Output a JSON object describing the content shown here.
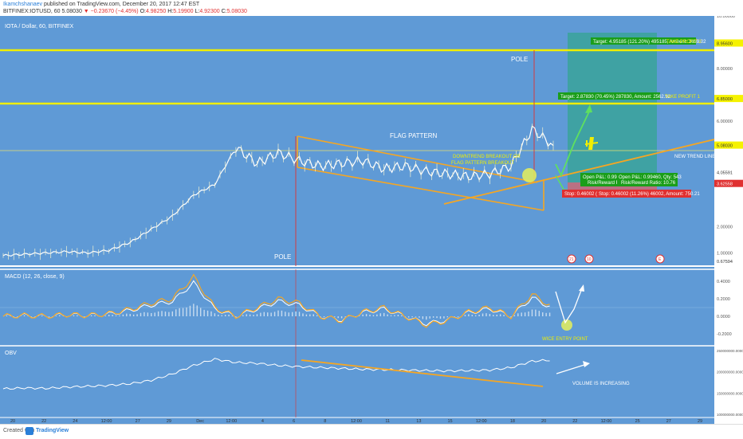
{
  "header": {
    "author": "Ikamchshanaev",
    "published": "published on TradingView.com, December 20, 2017 12:47 EST",
    "symbol_line": "BITFINEX:IOTUSD, 60",
    "last_price": "5.08030",
    "change": "▼ −0.23670 (−4.45%)",
    "ohlc_open_label": "O:",
    "ohlc_open": "4.98250",
    "ohlc_high_label": "H:",
    "ohlc_high": "5.19900",
    "ohlc_low_label": "L:",
    "ohlc_low": "4.92300",
    "ohlc_close_label": "C:",
    "ohlc_close": "5.08030"
  },
  "panes": {
    "main_title": "IOTA / Dollar, 60, BITFINEX",
    "macd_title": "MACD (12, 26, close, 9)",
    "obv_title": "OBV"
  },
  "annotations": {
    "pole_top": "POLE",
    "pole_bottom": "POLE",
    "flag_pattern": "FLAG PATTERN",
    "breakout_line1": "DOWNTREND BREAKOUT  OR",
    "breakout_line2": "FLAG PATTERN BREAKOUT",
    "take_profit_1": "TAKE PROFIT 1",
    "take_profit_2": "TAKE PROFIT 2",
    "new_trend_line": "NEW TREND LINE",
    "wice_entry_point": "WICE ENTRY POINT",
    "volume_increasing": "VOLUME IS INCREASING"
  },
  "position_labels": {
    "target_2": "Target: 4.95185 (121.20%) 495185, Amount: 2659.02",
    "target_1": "Target: 2.87830 (70.45%) 287830, Amount: 2562.92",
    "open_pnl_a": "Open P&L: 0.994",
    "risk_reward_a": "Risk/Reward R",
    "open_pnl_b": "Open P&L: 0.99460, Qty: 543",
    "risk_reward_b": "Risk/Reward Ratio: 10.76",
    "stop_a": "Stop: 0.46002 (1",
    "stop_b": "Stop: 0.46002 (11.26%) 46002, Amount: 750.21"
  },
  "price_axis": {
    "ticks": [
      "10.00000",
      "8.00000",
      "6.00000",
      "4.00000",
      "2.00000",
      "1.00000"
    ],
    "badges": [
      {
        "text": "8.95600",
        "bg": "#f5f200"
      },
      {
        "text": "6.85000",
        "bg": "#f5f200"
      },
      {
        "text": "5.08030",
        "bg": "#f5f200"
      },
      {
        "text": "4.05591",
        "bg": "#ffffff"
      },
      {
        "text": "3.62558",
        "bg": "#e03030"
      },
      {
        "text": "0.67594",
        "bg": "#ffffff"
      }
    ]
  },
  "macd_axis": {
    "ticks": [
      "0.4000",
      "0.2000",
      "0.0000",
      "-0.2000"
    ]
  },
  "obv_axis": {
    "ticks": [
      "250000000.0000",
      "200000000.0000",
      "150000000.0000",
      "100000000.0000"
    ]
  },
  "time_axis": {
    "labels": [
      "20",
      "22",
      "24",
      "12:00",
      "27",
      "29",
      "Dec",
      "12:00",
      "4",
      "6",
      "8",
      "12:00",
      "11",
      "13",
      "15",
      "12:00",
      "18",
      "20",
      "22",
      "12:00",
      "25",
      "27",
      "29"
    ]
  },
  "event_icons": [
    "21",
    "10",
    "E"
  ],
  "footer": {
    "created_with": "Created with",
    "brand": "TradingView"
  },
  "colors": {
    "chart_bg": "#5f9ad6",
    "price_line": "#ffffff",
    "yellow": "#f0ee00",
    "orange": "#f5a623",
    "macd": "#f5a623",
    "target_green": "#1a9e1a",
    "stop_red": "#e03030",
    "arrow_green": "#5fe05f",
    "teal_zone": "#3aa39a",
    "pole_red": "#e03030"
  },
  "chart_data": [
    {
      "type": "line",
      "pane": "price",
      "title": "IOTA / Dollar, 60, BITFINEX",
      "ylim": [
        0.5,
        10.0
      ],
      "x": [
        "Nov 19",
        "Nov 21",
        "Nov 23",
        "Nov 25",
        "Nov 27",
        "Nov 29",
        "Dec 1",
        "Dec 3",
        "Dec 4",
        "Dec 5",
        "Dec 6",
        "Dec 6b",
        "Dec 7",
        "Dec 8",
        "Dec 9",
        "Dec 10",
        "Dec 11",
        "Dec 12",
        "Dec 13",
        "Dec 14",
        "Dec 15",
        "Dec 16",
        "Dec 17",
        "Dec 18",
        "Dec 19",
        "Dec 19b",
        "Dec 20"
      ],
      "series": [
        {
          "values": [
            0.9,
            0.95,
            1.0,
            1.05,
            1.0,
            1.1,
            1.4,
            1.9,
            2.4,
            3.2,
            3.6,
            5.0,
            4.4,
            4.8,
            4.5,
            4.3,
            4.4,
            4.5,
            4.2,
            4.3,
            4.1,
            4.0,
            3.9,
            4.0,
            4.3,
            5.7,
            5.08
          ]
        }
      ],
      "horizontal_levels": [
        8.956,
        6.85,
        5.0803
      ],
      "grid": false
    },
    {
      "type": "line",
      "pane": "macd",
      "title": "MACD (12, 26, close, 9)",
      "ylim": [
        -0.3,
        0.5
      ],
      "series": [
        {
          "values": [
            0.0,
            0.01,
            0.0,
            0.02,
            0.01,
            0.03,
            0.08,
            0.15,
            0.2,
            0.45,
            0.1,
            0.0,
            0.1,
            0.2,
            0.15,
            0.0,
            -0.05,
            0.05,
            0.1,
            0.0,
            -0.1,
            -0.05,
            0.05,
            0.1,
            0.0,
            0.25,
            0.1
          ]
        }
      ]
    },
    {
      "type": "line",
      "pane": "obv",
      "title": "OBV",
      "ylim": [
        100000000,
        250000000
      ],
      "series": [
        {
          "values": [
            160000000,
            162000000,
            161000000,
            164000000,
            166000000,
            168000000,
            172000000,
            180000000,
            195000000,
            215000000,
            230000000,
            222000000,
            220000000,
            215000000,
            212000000,
            210000000,
            208000000,
            206000000,
            205000000,
            204000000,
            203000000,
            202000000,
            203000000,
            204000000,
            210000000,
            225000000,
            228000000
          ]
        }
      ]
    }
  ]
}
